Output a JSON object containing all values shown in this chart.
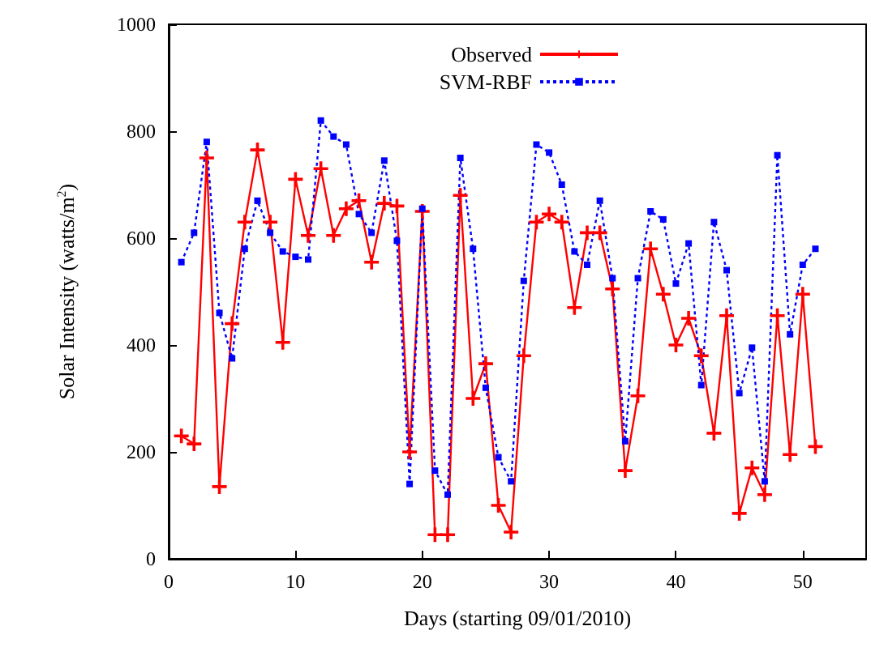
{
  "chart_data": {
    "type": "line",
    "xlabel": "Days (starting 09/01/2010)",
    "ylabel": "Solar Intensity (watts/m$^{2}$)",
    "x": [
      1,
      2,
      3,
      4,
      5,
      6,
      7,
      8,
      9,
      10,
      11,
      12,
      13,
      14,
      15,
      16,
      17,
      18,
      19,
      20,
      21,
      22,
      23,
      24,
      25,
      26,
      27,
      28,
      29,
      30,
      31,
      32,
      33,
      34,
      35,
      36,
      37,
      38,
      39,
      40,
      41,
      42,
      43,
      44,
      45,
      46,
      47,
      48,
      49,
      50,
      51
    ],
    "series": [
      {
        "name": "Observed",
        "color": "#ff0000",
        "marker": "cross",
        "line_style": "solid",
        "values": [
          230,
          215,
          750,
          135,
          440,
          630,
          765,
          630,
          405,
          710,
          605,
          730,
          605,
          655,
          670,
          555,
          665,
          660,
          200,
          650,
          45,
          45,
          680,
          300,
          365,
          100,
          50,
          380,
          630,
          645,
          630,
          470,
          610,
          610,
          505,
          165,
          305,
          580,
          495,
          400,
          450,
          380,
          235,
          455,
          85,
          170,
          120,
          455,
          195,
          495,
          210
        ]
      },
      {
        "name": "SVM-RBF",
        "color": "#0000ff",
        "marker": "square",
        "line_style": "dotted",
        "values": [
          555,
          610,
          780,
          460,
          375,
          580,
          670,
          610,
          575,
          565,
          560,
          820,
          790,
          775,
          645,
          610,
          745,
          595,
          140,
          655,
          165,
          120,
          750,
          580,
          320,
          190,
          145,
          520,
          775,
          760,
          700,
          575,
          550,
          670,
          525,
          220,
          525,
          650,
          635,
          515,
          590,
          325,
          630,
          540,
          310,
          395,
          145,
          755,
          420,
          550,
          580
        ]
      }
    ],
    "xlim": [
      0,
      55
    ],
    "xticks": [
      0,
      10,
      20,
      30,
      40,
      50
    ],
    "ylim": [
      0,
      1000
    ],
    "yticks": [
      0,
      200,
      400,
      600,
      800,
      1000
    ],
    "grid": false,
    "legend": "top right"
  }
}
